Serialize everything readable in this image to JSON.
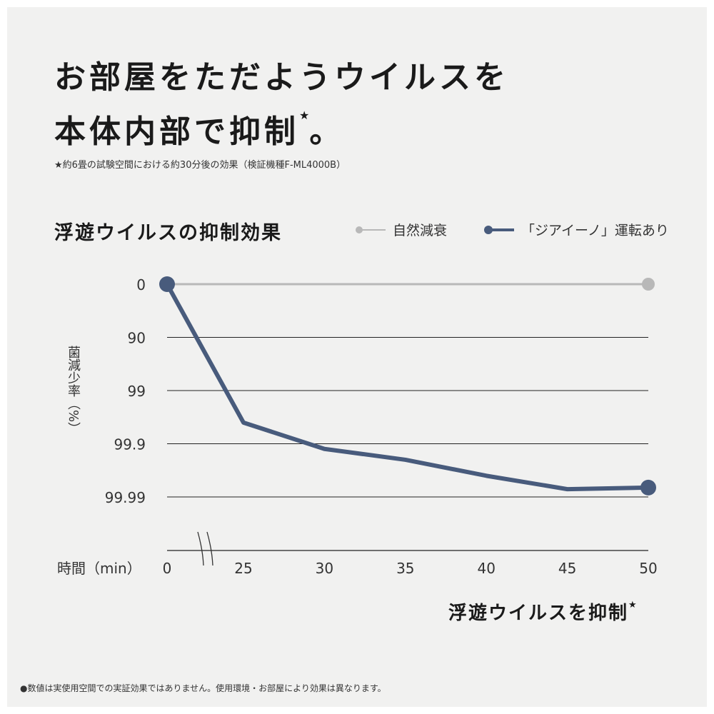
{
  "headline": {
    "line1": "お部屋をただようウイルスを",
    "line2": "本体内部で抑制",
    "line2_star": "★",
    "line2_end": "。"
  },
  "note": "★約6畳の試験空間における約30分後の効果（検証機種F-ML4000B）",
  "footnote": "●数値は実使用空間での実証効果ではありません。使用環境・お部屋により効果は異なります。",
  "callout": {
    "text": "浮遊ウイルスを抑制",
    "star": "★"
  },
  "colors": {
    "natural": "#b8b8b8",
    "ziaino": "#485b7c",
    "grid": "#222222"
  },
  "chart_data": {
    "type": "line",
    "title": "浮遊ウイルスの抑制効果",
    "ylabel": "菌減少率（%）",
    "xlabel": "時間（min）",
    "x_ticks": [
      "0",
      "25",
      "30",
      "35",
      "40",
      "45",
      "50"
    ],
    "y_ticks": [
      "0",
      "90",
      "99",
      "99.9",
      "99.99"
    ],
    "y_scale": "log-reduction",
    "x_axis_break": "between 0 and 25",
    "grid": true,
    "legend_position": "top-right",
    "series": [
      {
        "name": "自然減衰",
        "x": [
          0,
          50
        ],
        "y": [
          0,
          0
        ],
        "markers": "endpoints"
      },
      {
        "name": "「ジアイーノ」運転あり",
        "x": [
          0,
          25,
          30,
          35,
          40,
          45,
          50
        ],
        "y": [
          0,
          99.75,
          99.92,
          99.95,
          99.975,
          99.986,
          99.985
        ],
        "markers": "endpoints"
      }
    ]
  }
}
